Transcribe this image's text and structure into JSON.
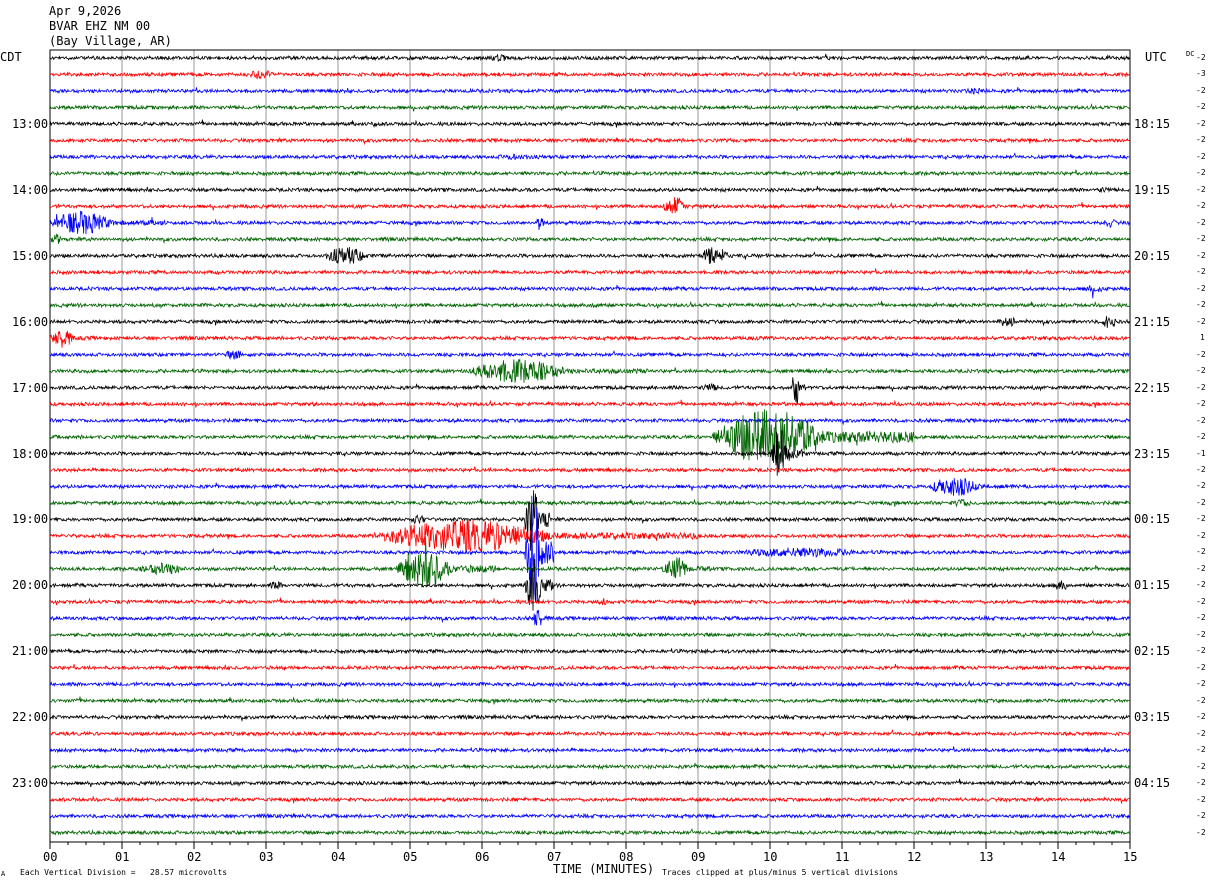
{
  "header": {
    "date": "Apr 9,2026",
    "station": "BVAR EHZ NM 00",
    "location": "(Bay Village, AR)"
  },
  "left_axis_label": "CDT",
  "right_axis_label": "UTC",
  "dc_label": "DC",
  "footer": {
    "division": "Each Vertical Division =   28.57 microvolts",
    "clipped": "Traces clipped at plus/minus 5 vertical divisions",
    "corner": "A"
  },
  "colors": {
    "black": "#000000",
    "red": "#ff0000",
    "blue": "#0000ff",
    "green": "#006400",
    "grid": "#808080"
  },
  "chart_data": {
    "type": "line",
    "title": "BVAR EHZ NM 00",
    "xlabel": "TIME (MINUTES)",
    "ylabel": "",
    "x_ticks": [
      "00",
      "01",
      "02",
      "03",
      "04",
      "05",
      "06",
      "07",
      "08",
      "09",
      "10",
      "11",
      "12",
      "13",
      "14",
      "15"
    ],
    "xlim": [
      0,
      15
    ],
    "left_time_labels": [
      {
        "row": 4,
        "text": "13:00"
      },
      {
        "row": 8,
        "text": "14:00"
      },
      {
        "row": 12,
        "text": "15:00"
      },
      {
        "row": 16,
        "text": "16:00"
      },
      {
        "row": 20,
        "text": "17:00"
      },
      {
        "row": 24,
        "text": "18:00"
      },
      {
        "row": 28,
        "text": "19:00"
      },
      {
        "row": 32,
        "text": "20:00"
      },
      {
        "row": 36,
        "text": "21:00"
      },
      {
        "row": 40,
        "text": "22:00"
      },
      {
        "row": 44,
        "text": "23:00"
      }
    ],
    "right_time_labels": [
      {
        "row": 4,
        "text": "18:15"
      },
      {
        "row": 8,
        "text": "19:15"
      },
      {
        "row": 12,
        "text": "20:15"
      },
      {
        "row": 16,
        "text": "21:15"
      },
      {
        "row": 20,
        "text": "22:15"
      },
      {
        "row": 24,
        "text": "23:15"
      },
      {
        "row": 28,
        "text": "00:15"
      },
      {
        "row": 32,
        "text": "01:15"
      },
      {
        "row": 36,
        "text": "02:15"
      },
      {
        "row": 40,
        "text": "03:15"
      },
      {
        "row": 44,
        "text": "04:15"
      }
    ],
    "dc_offsets": [
      "-2",
      "-3",
      "-2",
      "-2",
      "-2",
      "-2",
      "-2",
      "-2",
      "-2",
      "-2",
      "-2",
      "-2",
      "-2",
      "-2",
      "-2",
      "-2",
      "-2",
      "1",
      "-2",
      "-2",
      "-2",
      "-2",
      "-2",
      "-2",
      "-1",
      "-2",
      "-2",
      "-2",
      "-2",
      "-2",
      "-2",
      "-2",
      "-2",
      "-2",
      "-2",
      "-2",
      "-2",
      "-2",
      "-2",
      "-2",
      "-2",
      "-2",
      "-2",
      "-2",
      "-2",
      "-2",
      "-2",
      "-2"
    ],
    "series_colors": [
      "black",
      "red",
      "blue",
      "green"
    ],
    "events": [
      {
        "row": 0,
        "start": 6.1,
        "end": 6.6,
        "amp": 4
      },
      {
        "row": 0,
        "start": 14.6,
        "end": 15.0,
        "amp": 3
      },
      {
        "row": 1,
        "start": 2.7,
        "end": 3.5,
        "amp": 5
      },
      {
        "row": 2,
        "start": 12.6,
        "end": 13.5,
        "amp": 3
      },
      {
        "row": 4,
        "start": 4.4,
        "end": 4.8,
        "amp": 3
      },
      {
        "row": 6,
        "start": 6.1,
        "end": 7.4,
        "amp": 3
      },
      {
        "row": 8,
        "start": 14.5,
        "end": 15.0,
        "amp": 3
      },
      {
        "row": 9,
        "start": 8.5,
        "end": 9.1,
        "amp": 10
      },
      {
        "row": 10,
        "start": 0.0,
        "end": 1.6,
        "amp": 12
      },
      {
        "row": 10,
        "start": 6.75,
        "end": 6.95,
        "amp": 8
      },
      {
        "row": 10,
        "start": 14.6,
        "end": 15.0,
        "amp": 5
      },
      {
        "row": 11,
        "start": 0.0,
        "end": 0.3,
        "amp": 6
      },
      {
        "row": 12,
        "start": 3.8,
        "end": 4.9,
        "amp": 9
      },
      {
        "row": 12,
        "start": 9.0,
        "end": 9.8,
        "amp": 9
      },
      {
        "row": 14,
        "start": 14.3,
        "end": 15.0,
        "amp": 4
      },
      {
        "row": 15,
        "start": 7.4,
        "end": 8.0,
        "amp": 3
      },
      {
        "row": 16,
        "start": 13.1,
        "end": 13.8,
        "amp": 5
      },
      {
        "row": 16,
        "start": 14.6,
        "end": 15.0,
        "amp": 7
      },
      {
        "row": 17,
        "start": 0.0,
        "end": 0.6,
        "amp": 10
      },
      {
        "row": 17,
        "start": 9.5,
        "end": 10.8,
        "amp": 2
      },
      {
        "row": 18,
        "start": 2.4,
        "end": 3.0,
        "amp": 5
      },
      {
        "row": 19,
        "start": 5.8,
        "end": 8.3,
        "amp": 12
      },
      {
        "row": 20,
        "start": 9.0,
        "end": 9.6,
        "amp": 4
      },
      {
        "row": 20,
        "start": 10.3,
        "end": 10.5,
        "amp": 20
      },
      {
        "row": 23,
        "start": 9.2,
        "end": 12.0,
        "amp": 28
      },
      {
        "row": 24,
        "start": 10.0,
        "end": 10.5,
        "amp": 25
      },
      {
        "row": 26,
        "start": 12.2,
        "end": 13.5,
        "amp": 10
      },
      {
        "row": 27,
        "start": 12.5,
        "end": 13.1,
        "amp": 4
      },
      {
        "row": 28,
        "start": 5.0,
        "end": 5.4,
        "amp": 5
      },
      {
        "row": 28,
        "start": 6.6,
        "end": 6.95,
        "amp": 40
      },
      {
        "row": 29,
        "start": 4.5,
        "end": 9.0,
        "amp": 16
      },
      {
        "row": 30,
        "start": 6.6,
        "end": 7.0,
        "amp": 60
      },
      {
        "row": 30,
        "start": 9.4,
        "end": 13.0,
        "amp": 5
      },
      {
        "row": 31,
        "start": 1.2,
        "end": 2.5,
        "amp": 6
      },
      {
        "row": 31,
        "start": 4.8,
        "end": 6.2,
        "amp": 18
      },
      {
        "row": 31,
        "start": 8.5,
        "end": 9.2,
        "amp": 12
      },
      {
        "row": 32,
        "start": 3.0,
        "end": 3.5,
        "amp": 4
      },
      {
        "row": 32,
        "start": 6.6,
        "end": 7.0,
        "amp": 30
      },
      {
        "row": 32,
        "start": 13.9,
        "end": 14.4,
        "amp": 5
      },
      {
        "row": 33,
        "start": 7.6,
        "end": 7.9,
        "amp": 4
      },
      {
        "row": 34,
        "start": 6.7,
        "end": 6.95,
        "amp": 12
      }
    ]
  }
}
